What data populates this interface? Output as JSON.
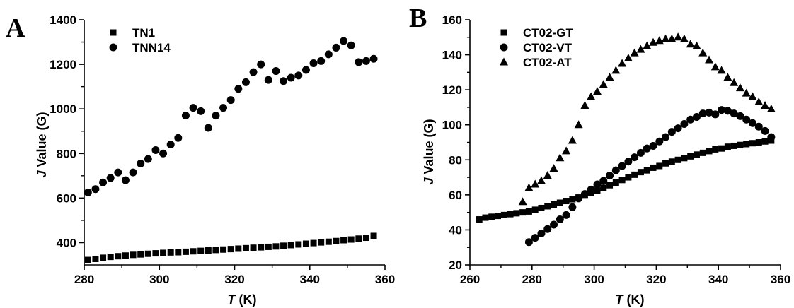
{
  "chart_data": [
    {
      "type": "scatter",
      "panel_label": "A",
      "xlabel_italic": "T",
      "xlabel_rest": " (K)",
      "ylabel_italic": "J",
      "ylabel_rest": " Value (G)",
      "xlim": [
        280,
        360
      ],
      "ylim": [
        300,
        1400
      ],
      "xticks": [
        280,
        300,
        320,
        340,
        360
      ],
      "yticks": [
        400,
        600,
        800,
        1000,
        1200,
        1400
      ],
      "legend_position": "top-left",
      "series": [
        {
          "name": "TN1",
          "marker": "square",
          "x": [
            281,
            283,
            285,
            287,
            289,
            291,
            293,
            295,
            297,
            299,
            301,
            303,
            305,
            307,
            309,
            311,
            313,
            315,
            317,
            319,
            321,
            323,
            325,
            327,
            329,
            331,
            333,
            335,
            337,
            339,
            341,
            343,
            345,
            347,
            349,
            351,
            353,
            355,
            357
          ],
          "y": [
            322,
            327,
            332,
            336,
            339,
            342,
            345,
            347,
            350,
            352,
            354,
            356,
            357,
            359,
            361,
            363,
            365,
            367,
            369,
            371,
            373,
            375,
            377,
            379,
            381,
            383,
            386,
            389,
            392,
            395,
            398,
            401,
            404,
            407,
            411,
            414,
            418,
            422,
            430
          ]
        },
        {
          "name": "TNN14",
          "marker": "circle",
          "x": [
            281,
            283,
            285,
            287,
            289,
            291,
            293,
            295,
            297,
            299,
            301,
            303,
            305,
            307,
            309,
            311,
            313,
            315,
            317,
            319,
            321,
            323,
            325,
            327,
            329,
            331,
            333,
            335,
            337,
            339,
            341,
            343,
            345,
            347,
            349,
            351,
            353,
            355,
            357
          ],
          "y": [
            625,
            640,
            670,
            690,
            715,
            680,
            715,
            755,
            775,
            815,
            800,
            840,
            870,
            970,
            1005,
            990,
            915,
            970,
            1005,
            1040,
            1090,
            1120,
            1165,
            1200,
            1130,
            1170,
            1125,
            1140,
            1150,
            1175,
            1205,
            1215,
            1245,
            1275,
            1305,
            1285,
            1210,
            1215,
            1225
          ]
        }
      ]
    },
    {
      "type": "scatter",
      "panel_label": "B",
      "xlabel_italic": "T",
      "xlabel_rest": " (K)",
      "ylabel_italic": "J",
      "ylabel_rest": " Value (G)",
      "xlim": [
        260,
        360
      ],
      "ylim": [
        20,
        160
      ],
      "xticks": [
        260,
        280,
        300,
        320,
        340,
        360
      ],
      "yticks": [
        20,
        40,
        60,
        80,
        100,
        120,
        140,
        160
      ],
      "legend_position": "top-left",
      "series": [
        {
          "name": "CT02-GT",
          "marker": "square",
          "x": [
            263,
            265,
            267,
            269,
            271,
            273,
            275,
            277,
            279,
            281,
            283,
            285,
            287,
            289,
            291,
            293,
            295,
            297,
            299,
            301,
            303,
            305,
            307,
            309,
            311,
            313,
            315,
            317,
            319,
            321,
            323,
            325,
            327,
            329,
            331,
            333,
            335,
            337,
            339,
            341,
            343,
            345,
            347,
            349,
            351,
            353,
            355,
            357
          ],
          "y": [
            46,
            47,
            47.5,
            48,
            48.5,
            49,
            49.5,
            50,
            50.5,
            51.5,
            52.5,
            53.5,
            54.5,
            55.5,
            56.5,
            57.5,
            58.5,
            60,
            61,
            62.5,
            64,
            65.5,
            67,
            68.5,
            70,
            71.5,
            73,
            74,
            75.5,
            76.5,
            78,
            79,
            80,
            81,
            82,
            83,
            84,
            85,
            86,
            86.5,
            87.5,
            88,
            88.5,
            89,
            89.5,
            90,
            90.5,
            91
          ]
        },
        {
          "name": "CT02-VT",
          "marker": "circle",
          "x": [
            279,
            281,
            283,
            285,
            287,
            289,
            291,
            293,
            295,
            297,
            299,
            301,
            303,
            305,
            307,
            309,
            311,
            313,
            315,
            317,
            319,
            321,
            323,
            325,
            327,
            329,
            331,
            333,
            335,
            337,
            339,
            341,
            343,
            345,
            347,
            349,
            351,
            353,
            355,
            357
          ],
          "y": [
            33,
            35.5,
            38,
            40.5,
            43,
            46,
            48.5,
            53,
            58,
            60.5,
            63,
            66,
            68,
            71,
            74,
            76.5,
            79,
            81.5,
            84,
            86.5,
            88,
            90.5,
            93,
            96,
            98,
            100.5,
            103,
            104.5,
            106.5,
            107,
            106,
            108.5,
            108,
            106.5,
            105,
            103,
            101,
            99,
            96.5,
            93
          ]
        },
        {
          "name": "CT02-AT",
          "marker": "triangle",
          "x": [
            277,
            279,
            281,
            283,
            285,
            287,
            289,
            291,
            293,
            295,
            297,
            299,
            301,
            303,
            305,
            307,
            309,
            311,
            313,
            315,
            317,
            319,
            321,
            323,
            325,
            327,
            329,
            331,
            333,
            335,
            337,
            339,
            341,
            343,
            345,
            347,
            349,
            351,
            353,
            355,
            357
          ],
          "y": [
            56,
            64,
            66,
            68,
            71,
            75,
            81,
            85,
            91,
            100,
            111,
            116,
            119,
            123,
            127,
            131,
            135,
            138,
            141,
            143,
            145,
            147,
            148,
            149,
            149,
            150,
            149,
            146,
            145,
            141,
            137,
            133,
            131,
            127,
            124,
            121,
            118,
            116,
            113,
            111,
            109
          ]
        }
      ]
    }
  ]
}
